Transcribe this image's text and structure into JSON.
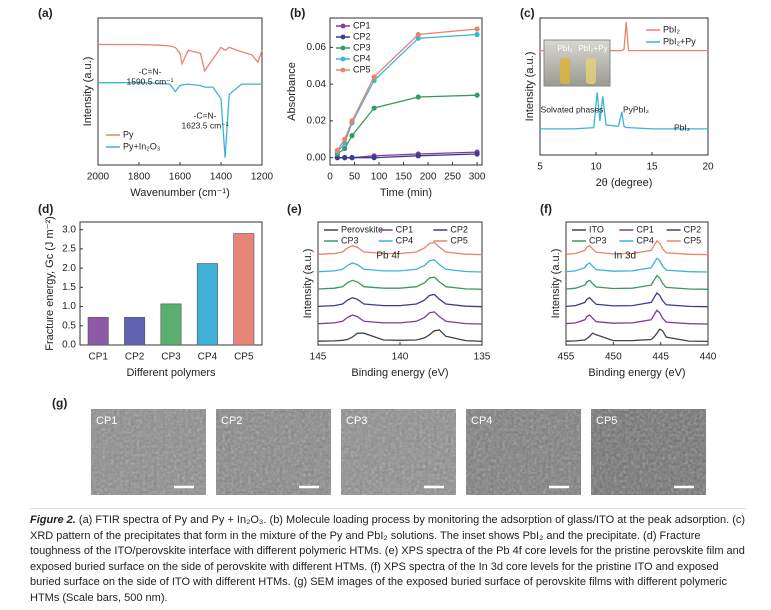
{
  "chart_data": [
    {
      "panel": "(a)",
      "type": "line",
      "x_label": "Wavenumber (cm⁻¹)",
      "y_label": "Intensity (a.u.)",
      "xlim": [
        2000,
        1200
      ],
      "xticks": [
        2000,
        1800,
        1600,
        1400,
        1200
      ],
      "ylim": [
        0,
        10
      ],
      "legend": "lower left",
      "x": [
        2000,
        1900,
        1800,
        1700,
        1650,
        1623,
        1600,
        1590,
        1560,
        1500,
        1480,
        1440,
        1400,
        1380,
        1360,
        1300,
        1250,
        1220,
        1200
      ],
      "series": [
        {
          "name": "Py",
          "color": "#e8846e",
          "values": [
            8.2,
            8.2,
            8.2,
            8.15,
            8.1,
            8.0,
            7.6,
            6.9,
            7.8,
            7.6,
            6.4,
            7.2,
            8.0,
            7.8,
            8.0,
            7.7,
            7.5,
            7.0,
            7.8
          ]
        },
        {
          "name": "Py+In₂O₃",
          "color": "#3cb4d8",
          "values": [
            5.6,
            5.6,
            5.6,
            5.55,
            5.5,
            5.0,
            5.4,
            5.45,
            5.5,
            5.4,
            5.3,
            5.3,
            4.5,
            0.5,
            4.8,
            5.5,
            5.5,
            5.5,
            5.5
          ]
        }
      ],
      "annotations": [
        [
          "-C=N-",
          "1590.5 cm⁻¹"
        ],
        [
          "-C=N-",
          "1623.5 cm⁻¹"
        ]
      ]
    },
    {
      "panel": "(b)",
      "type": "line",
      "markers": true,
      "x_label": "Time (min)",
      "y_label": "Absorbance",
      "xlim": [
        0,
        310
      ],
      "xticks": [
        0,
        50,
        100,
        150,
        200,
        250,
        300
      ],
      "ylim": [
        -0.004,
        0.076
      ],
      "yticks": [
        {
          "value": 0,
          "label": "0.00"
        },
        {
          "value": 0.02,
          "label": "0.02"
        },
        {
          "value": 0.04,
          "label": "0.04"
        },
        {
          "value": 0.06,
          "label": "0.06"
        }
      ],
      "legend": "upper left",
      "x": [
        15,
        30,
        45,
        90,
        180,
        300
      ],
      "series": [
        {
          "name": "CP1",
          "color": "#7b3f97",
          "values": [
            0.0,
            0.0,
            0.0,
            0.001,
            0.002,
            0.003
          ]
        },
        {
          "name": "CP2",
          "color": "#3b3b8f",
          "values": [
            0.0,
            0.0,
            0.0,
            0.0,
            0.001,
            0.002
          ]
        },
        {
          "name": "CP3",
          "color": "#3a9a5b",
          "values": [
            0.002,
            0.005,
            0.012,
            0.027,
            0.033,
            0.034
          ]
        },
        {
          "name": "CP4",
          "color": "#3cb4d8",
          "values": [
            0.003,
            0.008,
            0.019,
            0.042,
            0.065,
            0.067
          ]
        },
        {
          "name": "CP5",
          "color": "#e8846e",
          "values": [
            0.004,
            0.01,
            0.02,
            0.044,
            0.067,
            0.07
          ]
        }
      ]
    },
    {
      "panel": "(c)",
      "type": "line",
      "x_label": "2θ (degree)",
      "y_label": "Intensity (a.u.)",
      "xlim": [
        5,
        20
      ],
      "xticks": [
        5,
        10,
        15,
        20
      ],
      "ylim": [
        0,
        10.5
      ],
      "legend": "upper right",
      "x": [
        5,
        8,
        9.8,
        10.1,
        10.35,
        10.6,
        10.9,
        12.0,
        12.3,
        12.5,
        12.7,
        12.9,
        15,
        20
      ],
      "series": [
        {
          "name": "PbI₂",
          "color": "#e8846e",
          "values": [
            8,
            8,
            8,
            8,
            8,
            8,
            8,
            8,
            8,
            8.1,
            10.2,
            8,
            8,
            8
          ]
        },
        {
          "name": "PbI₂+Py",
          "color": "#3cb4d8",
          "values": [
            2,
            2,
            2.1,
            4.8,
            2.6,
            4.5,
            2.3,
            2.2,
            3.3,
            2.2,
            2.1,
            2.1,
            2,
            2
          ]
        }
      ],
      "annotations": [
        [
          "Solvated phases"
        ],
        [
          "PyPbI₂"
        ],
        [
          "PbI₂"
        ]
      ],
      "inset_labels": [
        "PbI₂",
        "PbI₂+Py"
      ]
    },
    {
      "panel": "(d)",
      "type": "bar",
      "x_label": "Different polymers",
      "y_label": "Fracture energy, Gc (J m⁻²)",
      "categories": [
        "CP1",
        "CP2",
        "CP3",
        "CP4",
        "CP5"
      ],
      "values": [
        0.72,
        0.72,
        1.07,
        2.12,
        2.9
      ],
      "colors": [
        "#8e5aa8",
        "#6262b4",
        "#5aae6e",
        "#3fb0d8",
        "#e8857a"
      ],
      "ylim": [
        0,
        3.2
      ],
      "yticks": [
        {
          "value": 0,
          "label": "0.0"
        },
        {
          "value": 0.5,
          "label": "0.5"
        },
        {
          "value": 1,
          "label": "1.0"
        },
        {
          "value": 1.5,
          "label": "1.5"
        },
        {
          "value": 2,
          "label": "2.0"
        },
        {
          "value": 2.5,
          "label": "2.5"
        },
        {
          "value": 3,
          "label": "3.0"
        }
      ]
    },
    {
      "panel": "(e)",
      "type": "line",
      "x_label": "Binding energy (eV)",
      "y_label": "Intensity (a.u.)",
      "inset_title": "Pb 4f",
      "xlim": [
        145,
        135
      ],
      "xticks": [
        145,
        140,
        135
      ],
      "ylim": [
        -0.2,
        7.6
      ],
      "legend": "upper center",
      "legend_columns": 3,
      "x": [
        145,
        144,
        143.5,
        143.2,
        142.9,
        142.6,
        142.2,
        141,
        140,
        139,
        138.5,
        138.2,
        137.9,
        137.6,
        137.2,
        136,
        135
      ],
      "series": [
        {
          "name": "Perovskite",
          "color": "#444444",
          "values": [
            0.04,
            0.06,
            0.1,
            0.15,
            0.3,
            0.55,
            0.55,
            0.12,
            0.1,
            0.12,
            0.25,
            0.45,
            0.7,
            0.75,
            0.35,
            0.08,
            0.03
          ]
        },
        {
          "name": "CP1",
          "color": "#7b3f97",
          "values": [
            1.15,
            1.2,
            1.3,
            1.55,
            1.7,
            1.6,
            1.3,
            1.2,
            1.2,
            1.3,
            1.55,
            1.85,
            1.9,
            1.6,
            1.3,
            1.16,
            1.13
          ]
        },
        {
          "name": "CP2",
          "color": "#3b3b8f",
          "values": [
            2.25,
            2.3,
            2.4,
            2.65,
            2.8,
            2.7,
            2.4,
            2.3,
            2.3,
            2.4,
            2.65,
            2.95,
            3.0,
            2.7,
            2.4,
            2.26,
            2.23
          ]
        },
        {
          "name": "CP3",
          "color": "#3a9a5b",
          "values": [
            3.35,
            3.4,
            3.5,
            3.75,
            3.9,
            3.8,
            3.5,
            3.4,
            3.4,
            3.5,
            3.75,
            4.05,
            4.1,
            3.8,
            3.5,
            3.36,
            3.33
          ]
        },
        {
          "name": "CP4",
          "color": "#3cb4d8",
          "values": [
            4.45,
            4.5,
            4.6,
            4.85,
            5.0,
            4.9,
            4.6,
            4.5,
            4.5,
            4.6,
            4.85,
            5.15,
            5.2,
            4.9,
            4.6,
            4.46,
            4.43
          ]
        },
        {
          "name": "CP5",
          "color": "#e8846e",
          "values": [
            5.55,
            5.6,
            5.7,
            5.95,
            6.1,
            6.0,
            5.7,
            5.6,
            5.6,
            5.7,
            5.95,
            6.25,
            6.3,
            6.0,
            5.7,
            5.56,
            5.53
          ]
        }
      ]
    },
    {
      "panel": "(f)",
      "type": "line",
      "x_label": "Binding energy (eV)",
      "y_label": "Intensity (a.u.)",
      "inset_title": "In 3d",
      "xlim": [
        455,
        440
      ],
      "xticks": [
        455,
        450,
        445,
        440
      ],
      "ylim": [
        -0.2,
        7.6
      ],
      "legend": "upper center",
      "legend_columns": 3,
      "x": [
        455,
        454,
        453,
        452.8,
        452.5,
        452.2,
        451.8,
        450,
        448,
        446,
        445.7,
        445.4,
        445.1,
        444.8,
        444.4,
        442,
        440
      ],
      "series": [
        {
          "name": "ITO",
          "color": "#444444",
          "values": [
            0.04,
            0.06,
            0.12,
            0.2,
            0.35,
            0.55,
            0.45,
            0.08,
            0.08,
            0.15,
            0.3,
            0.55,
            0.8,
            0.7,
            0.3,
            0.05,
            0.03
          ]
        },
        {
          "name": "CP1",
          "color": "#7b3f97",
          "values": [
            1.15,
            1.2,
            1.4,
            1.6,
            1.7,
            1.5,
            1.28,
            1.18,
            1.2,
            1.4,
            1.7,
            2.0,
            1.85,
            1.5,
            1.25,
            1.15,
            1.13
          ]
        },
        {
          "name": "CP2",
          "color": "#3b3b8f",
          "values": [
            2.25,
            2.3,
            2.5,
            2.7,
            2.8,
            2.6,
            2.38,
            2.28,
            2.3,
            2.5,
            2.8,
            3.1,
            2.95,
            2.6,
            2.35,
            2.25,
            2.23
          ]
        },
        {
          "name": "CP3",
          "color": "#3a9a5b",
          "values": [
            3.35,
            3.4,
            3.6,
            3.8,
            3.9,
            3.7,
            3.48,
            3.38,
            3.4,
            3.6,
            3.9,
            4.2,
            4.05,
            3.7,
            3.45,
            3.35,
            3.33
          ]
        },
        {
          "name": "CP4",
          "color": "#3cb4d8",
          "values": [
            4.45,
            4.5,
            4.7,
            4.9,
            5.0,
            4.8,
            4.58,
            4.48,
            4.5,
            4.7,
            5.0,
            5.3,
            5.15,
            4.8,
            4.55,
            4.45,
            4.43
          ]
        },
        {
          "name": "CP5",
          "color": "#e8846e",
          "values": [
            5.55,
            5.6,
            5.8,
            6.0,
            6.1,
            5.9,
            5.68,
            5.58,
            5.6,
            5.8,
            6.1,
            6.4,
            6.25,
            5.9,
            5.65,
            5.55,
            5.53
          ]
        }
      ]
    }
  ],
  "sem": {
    "panel": "(g)",
    "labels": [
      "CP1",
      "CP2",
      "CP3",
      "CP4",
      "CP5"
    ]
  },
  "caption": {
    "label": "Figure 2.",
    "text": "(a) FTIR spectra of Py and Py + In₂O₃. (b) Molecule loading process by monitoring the adsorption of glass/ITO at the peak adsorption. (c) XRD pattern of the precipitates that form in the mixture of the Py and PbI₂ solutions. The inset shows PbI₂ and the precipitate. (d) Fracture toughness of the ITO/perovskite interface with different polymeric HTMs. (e) XPS spectra of the Pb 4f core levels for the pristine perovskite film and exposed buried surface on the side of perovskite with different HTMs. (f) XPS spectra of the In 3d core levels for the pristine ITO and exposed buried surface on the side of ITO with different HTMs. (g) SEM images of the exposed buried surface of perovskite films with different polymeric HTMs (Scale bars, 500 nm)."
  }
}
